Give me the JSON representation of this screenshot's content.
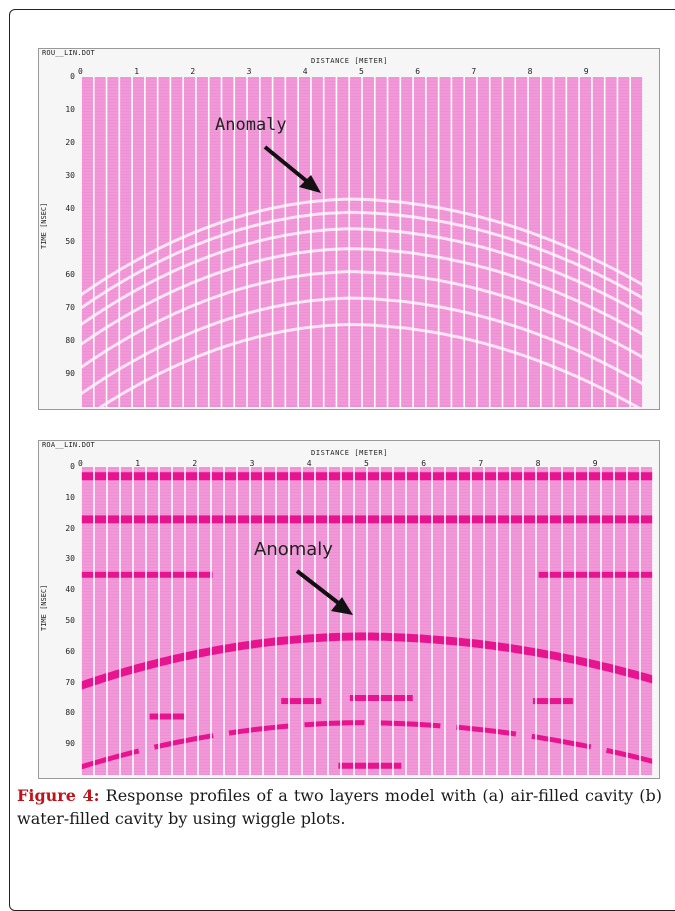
{
  "figure": {
    "label": "Figure 4:",
    "caption": " Response profiles of a two layers model with (a) air-filled cavity (b) water-filled cavity by using wiggle plots."
  },
  "panels": [
    {
      "title": "ROU__LIN.DOT",
      "xlabel": "DISTANCE [METER]",
      "ylabel": "TIME [NSEC]",
      "x_ticks": [
        "0",
        "1",
        "2",
        "3",
        "4",
        "5",
        "6",
        "7",
        "8",
        "9"
      ],
      "y_ticks": [
        "0",
        "10",
        "20",
        "30",
        "40",
        "50",
        "60",
        "70",
        "80",
        "90"
      ],
      "annotation": "Anomaly"
    },
    {
      "title": "ROA__LIN.DOT",
      "xlabel": "DISTANCE [METER]",
      "ylabel": "TIME [NSEC]",
      "x_ticks": [
        "0",
        "1",
        "2",
        "3",
        "4",
        "5",
        "6",
        "7",
        "8",
        "9"
      ],
      "y_ticks": [
        "0",
        "10",
        "20",
        "30",
        "40",
        "50",
        "60",
        "70",
        "80",
        "90"
      ],
      "annotation": "Anomaly"
    }
  ],
  "colors": {
    "background_fill": "#ef8fd4",
    "reflector": "#e8148f",
    "trace_line": "#ffffff",
    "arrow": "#111111"
  },
  "chart_data": [
    {
      "type": "wiggle-plot",
      "title": "ROU__LIN.DOT",
      "xlabel": "DISTANCE [METER]",
      "ylabel": "TIME [NSEC]",
      "xlim": [
        0,
        10
      ],
      "ylim": [
        0,
        100
      ],
      "y_inverted": true,
      "hyperbola_apex": {
        "x": 4.8,
        "y": 37
      },
      "hyperbola_left_end": {
        "x": 0,
        "y": 66
      },
      "hyperbola_right_end": {
        "x": 10,
        "y": 63
      },
      "annotation": "Anomaly"
    },
    {
      "type": "wiggle-plot",
      "title": "ROA__LIN.DOT",
      "xlabel": "DISTANCE [METER]",
      "ylabel": "TIME [NSEC]",
      "xlim": [
        0,
        10
      ],
      "ylim": [
        0,
        100
      ],
      "y_inverted": true,
      "horizontal_reflectors": [
        3,
        17
      ],
      "hyperbola_apex": {
        "x": 4.9,
        "y": 55
      },
      "hyperbola_left_end": {
        "x": 0,
        "y": 71
      },
      "hyperbola_right_end": {
        "x": 10,
        "y": 69
      },
      "second_hyperbola_apex": {
        "x": 5,
        "y": 83
      },
      "annotation": "Anomaly"
    }
  ]
}
